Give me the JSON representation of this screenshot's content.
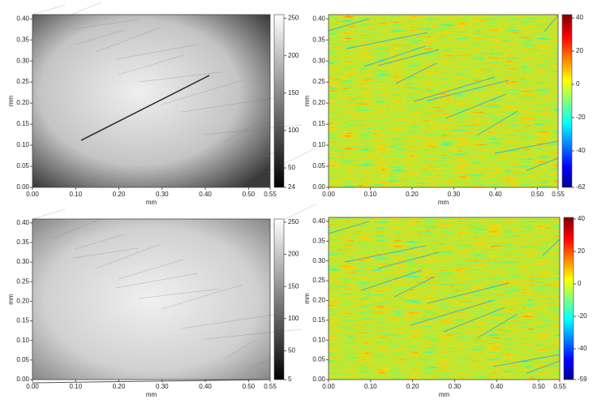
{
  "chart_data": [
    {
      "type": "image",
      "colormap": "gray",
      "xlabel": "mm",
      "ylabel": "mm",
      "xlim": [
        0,
        0.55
      ],
      "ylim": [
        0,
        0.41
      ],
      "xticks": [
        {
          "value": 0,
          "label": "0.00"
        },
        {
          "value": 0.1,
          "label": "0.10"
        },
        {
          "value": 0.2,
          "label": "0.20"
        },
        {
          "value": 0.3,
          "label": "0.30"
        },
        {
          "value": 0.4,
          "label": "0.40"
        },
        {
          "value": 0.5,
          "label": "0.50"
        },
        {
          "value": 0.55,
          "label": "0.55"
        }
      ],
      "yticks": [
        {
          "value": 0,
          "label": "0.00"
        },
        {
          "value": 0.05,
          "label": "0.05"
        },
        {
          "value": 0.1,
          "label": "0.10"
        },
        {
          "value": 0.15,
          "label": "0.15"
        },
        {
          "value": 0.2,
          "label": "0.20"
        },
        {
          "value": 0.25,
          "label": "0.25"
        },
        {
          "value": 0.3,
          "label": "0.30"
        },
        {
          "value": 0.35,
          "label": "0.35"
        },
        {
          "value": 0.4,
          "label": "0.40"
        }
      ],
      "clim": [
        24,
        255
      ],
      "cticks": [
        250,
        200,
        150,
        100,
        50,
        24
      ]
    },
    {
      "type": "image",
      "colormap": "jet",
      "xlabel": "mm",
      "ylabel": "mm",
      "xlim": [
        0,
        0.55
      ],
      "ylim": [
        0,
        0.41
      ],
      "xticks": [
        {
          "value": 0,
          "label": "0.00"
        },
        {
          "value": 0.1,
          "label": "0.10"
        },
        {
          "value": 0.2,
          "label": "0.20"
        },
        {
          "value": 0.3,
          "label": "0.30"
        },
        {
          "value": 0.4,
          "label": "0.40"
        },
        {
          "value": 0.5,
          "label": "0.50"
        },
        {
          "value": 0.55,
          "label": "0.55"
        }
      ],
      "yticks": [
        {
          "value": 0,
          "label": "0.00"
        },
        {
          "value": 0.05,
          "label": "0.05"
        },
        {
          "value": 0.1,
          "label": "0.10"
        },
        {
          "value": 0.15,
          "label": "0.15"
        },
        {
          "value": 0.2,
          "label": "0.20"
        },
        {
          "value": 0.25,
          "label": "0.25"
        },
        {
          "value": 0.3,
          "label": "0.30"
        },
        {
          "value": 0.35,
          "label": "0.35"
        },
        {
          "value": 0.4,
          "label": "0.40"
        }
      ],
      "clim": [
        -62,
        42
      ],
      "cticks": [
        40,
        20,
        0,
        -20,
        -40,
        -62
      ]
    },
    {
      "type": "image",
      "colormap": "gray",
      "xlabel": "mm",
      "ylabel": "mm",
      "xlim": [
        0,
        0.55
      ],
      "ylim": [
        0,
        0.41
      ],
      "xticks": [
        {
          "value": 0,
          "label": "0.00"
        },
        {
          "value": 0.1,
          "label": "0.10"
        },
        {
          "value": 0.2,
          "label": "0.20"
        },
        {
          "value": 0.3,
          "label": "0.30"
        },
        {
          "value": 0.4,
          "label": "0.40"
        },
        {
          "value": 0.5,
          "label": "0.50"
        },
        {
          "value": 0.55,
          "label": "0.55"
        }
      ],
      "yticks": [
        {
          "value": 0,
          "label": "0.00"
        },
        {
          "value": 0.05,
          "label": "0.05"
        },
        {
          "value": 0.1,
          "label": "0.10"
        },
        {
          "value": 0.15,
          "label": "0.15"
        },
        {
          "value": 0.2,
          "label": "0.20"
        },
        {
          "value": 0.25,
          "label": "0.25"
        },
        {
          "value": 0.3,
          "label": "0.30"
        },
        {
          "value": 0.35,
          "label": "0.35"
        },
        {
          "value": 0.4,
          "label": "0.40"
        }
      ],
      "clim": [
        5,
        255
      ],
      "cticks": [
        250,
        200,
        150,
        100,
        50,
        5
      ]
    },
    {
      "type": "image",
      "colormap": "jet",
      "xlabel": "mm",
      "ylabel": "mm",
      "xlim": [
        0,
        0.55
      ],
      "ylim": [
        0,
        0.41
      ],
      "xticks": [
        {
          "value": 0,
          "label": "0.00"
        },
        {
          "value": 0.1,
          "label": "0.10"
        },
        {
          "value": 0.2,
          "label": "0.20"
        },
        {
          "value": 0.3,
          "label": "0.30"
        },
        {
          "value": 0.4,
          "label": "0.40"
        },
        {
          "value": 0.5,
          "label": "0.50"
        },
        {
          "value": 0.55,
          "label": "0.55"
        }
      ],
      "yticks": [
        {
          "value": 0,
          "label": "0.00"
        },
        {
          "value": 0.05,
          "label": "0.05"
        },
        {
          "value": 0.1,
          "label": "0.10"
        },
        {
          "value": 0.15,
          "label": "0.15"
        },
        {
          "value": 0.2,
          "label": "0.20"
        },
        {
          "value": 0.25,
          "label": "0.25"
        },
        {
          "value": 0.3,
          "label": "0.30"
        },
        {
          "value": 0.35,
          "label": "0.35"
        },
        {
          "value": 0.4,
          "label": "0.40"
        }
      ],
      "clim": [
        -59,
        41
      ],
      "cticks": [
        40,
        20,
        0,
        -20,
        -40,
        -59
      ]
    }
  ]
}
